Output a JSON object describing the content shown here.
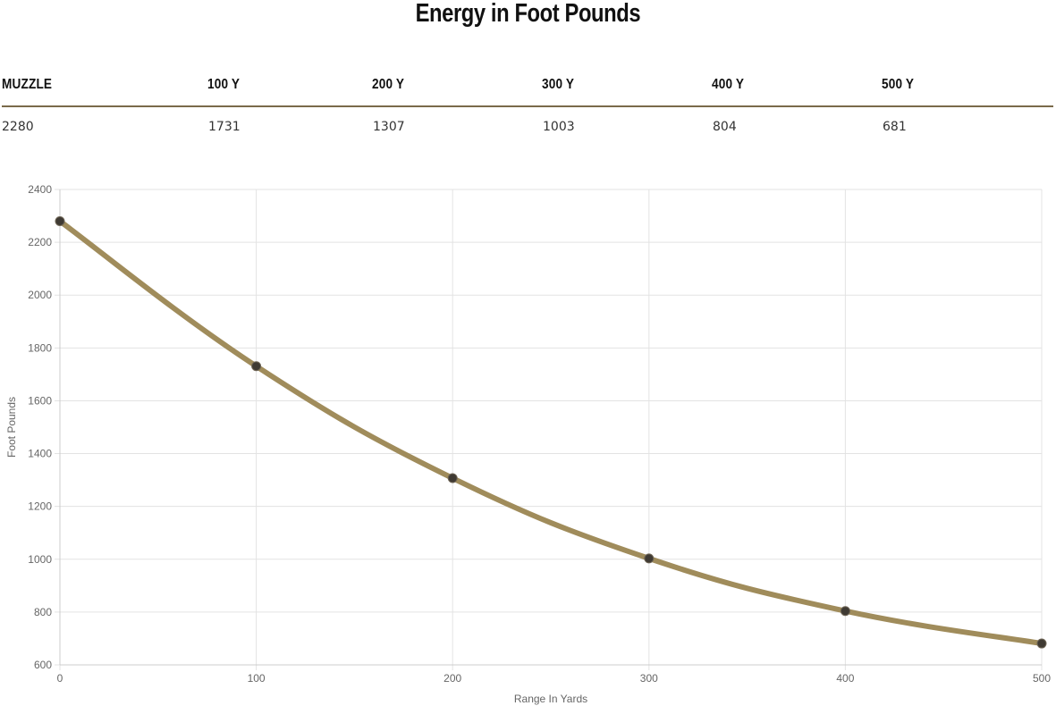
{
  "chart_data": {
    "type": "line",
    "title": "Energy in Foot Pounds",
    "xlabel": "Range In Yards",
    "ylabel": "Foot Pounds",
    "x": [
      0,
      100,
      200,
      300,
      400,
      500
    ],
    "values": [
      2280,
      1731,
      1307,
      1003,
      804,
      681
    ],
    "xticks": [
      "0",
      "100",
      "200",
      "300",
      "400",
      "500"
    ],
    "yticks": [
      "600",
      "800",
      "1000",
      "1200",
      "1400",
      "1600",
      "1800",
      "2000",
      "2200",
      "2400"
    ],
    "ylim": [
      600,
      2400
    ],
    "xlim": [
      0,
      500
    ],
    "grid": true,
    "line_color": "#a08c5b",
    "point_color": "#3f3a33"
  },
  "table": {
    "headers": [
      "MUZZLE",
      "100 Y",
      "200 Y",
      "300 Y",
      "400 Y",
      "500 Y"
    ],
    "values": [
      "2280",
      "1731",
      "1307",
      "1003",
      "804",
      "681"
    ]
  },
  "colors": {
    "divider": "#7a6a4a",
    "grid": "#e3e3e3"
  }
}
